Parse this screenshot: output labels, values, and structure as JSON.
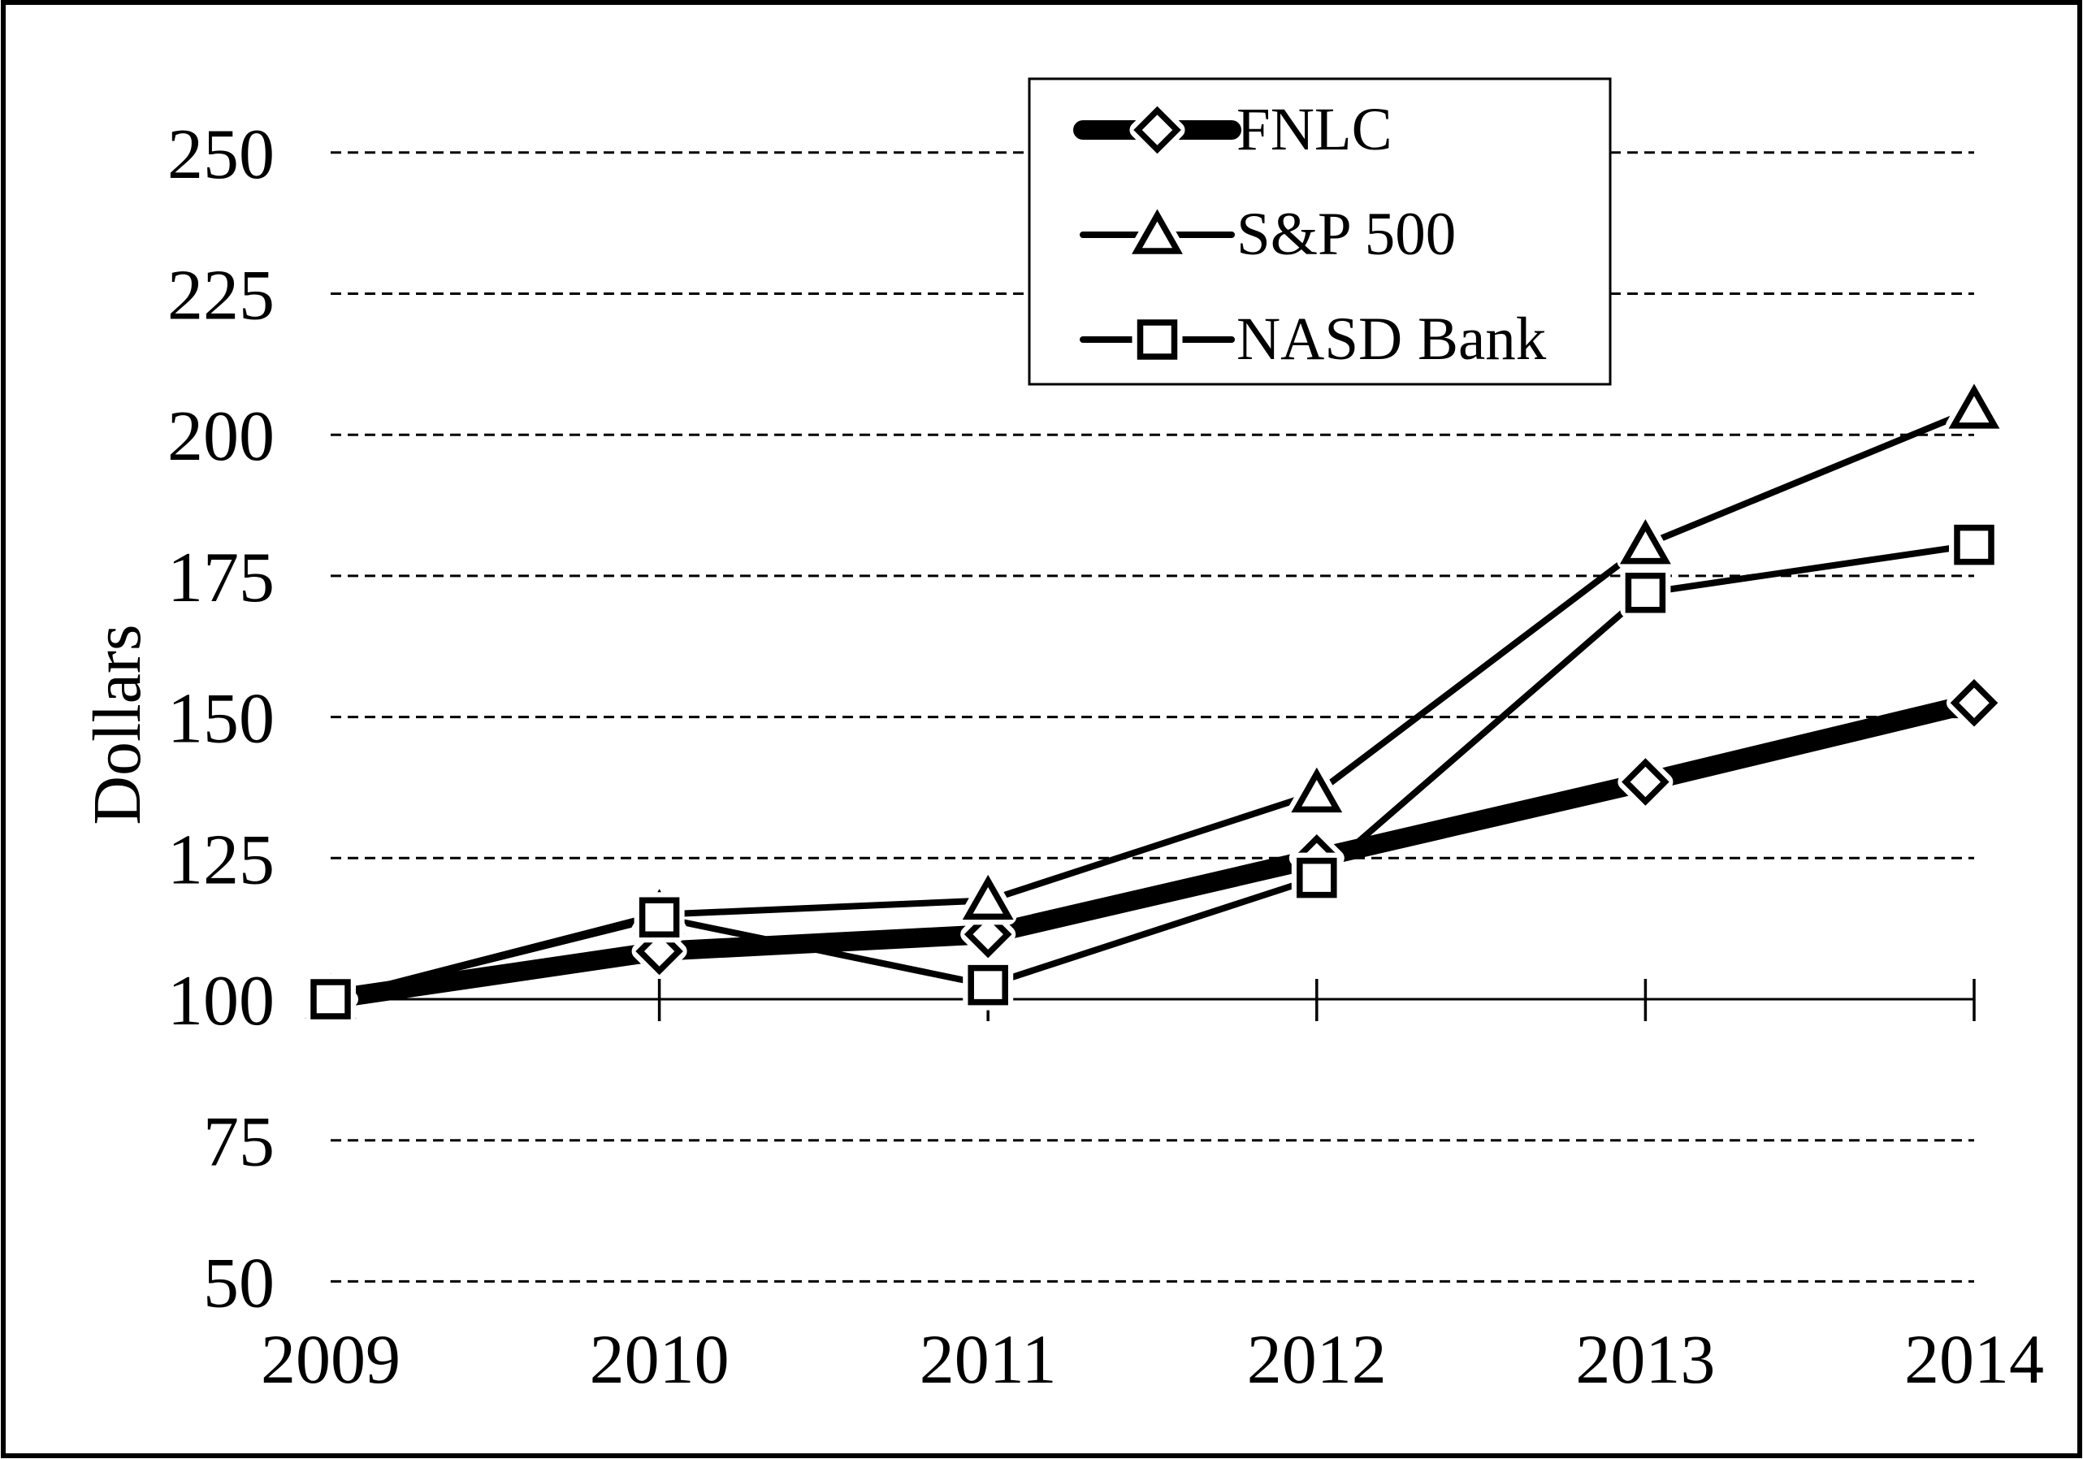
{
  "figure": {
    "background_color": "#ffffff",
    "border_color": "#000000",
    "series_color": "#000000",
    "marker_fill": "#ffffff"
  },
  "chart_data": {
    "type": "line",
    "title": "",
    "xlabel": "",
    "ylabel": "Dollars",
    "categories": [
      "2009",
      "2010",
      "2011",
      "2012",
      "2013",
      "2014"
    ],
    "yticks": [
      250,
      225,
      200,
      175,
      150,
      125,
      100,
      75,
      50
    ],
    "ytick_labels": [
      "250",
      "225",
      "200",
      "175",
      "150",
      "125",
      "100",
      "75",
      "50"
    ],
    "ylim": [
      50,
      262
    ],
    "baseline_value": 100,
    "grid": "horizontal-dashed",
    "legend_position": "top-center-inside",
    "series": [
      {
        "name": "FNLC",
        "marker": "diamond",
        "marker_icon": "diamond-marker-icon",
        "line_weight": "thick",
        "values": [
          100,
          108.5,
          111.5,
          125,
          138.5,
          152.5
        ]
      },
      {
        "name": "S&P 500",
        "marker": "triangle",
        "marker_icon": "triangle-marker-icon",
        "line_weight": "thin",
        "values": [
          100,
          115,
          117.5,
          136.5,
          180.5,
          204.5
        ]
      },
      {
        "name": "NASD Bank",
        "marker": "square",
        "marker_icon": "square-marker-icon",
        "line_weight": "thin",
        "values": [
          100,
          114.5,
          102.5,
          121.5,
          172,
          180.5
        ]
      }
    ]
  }
}
